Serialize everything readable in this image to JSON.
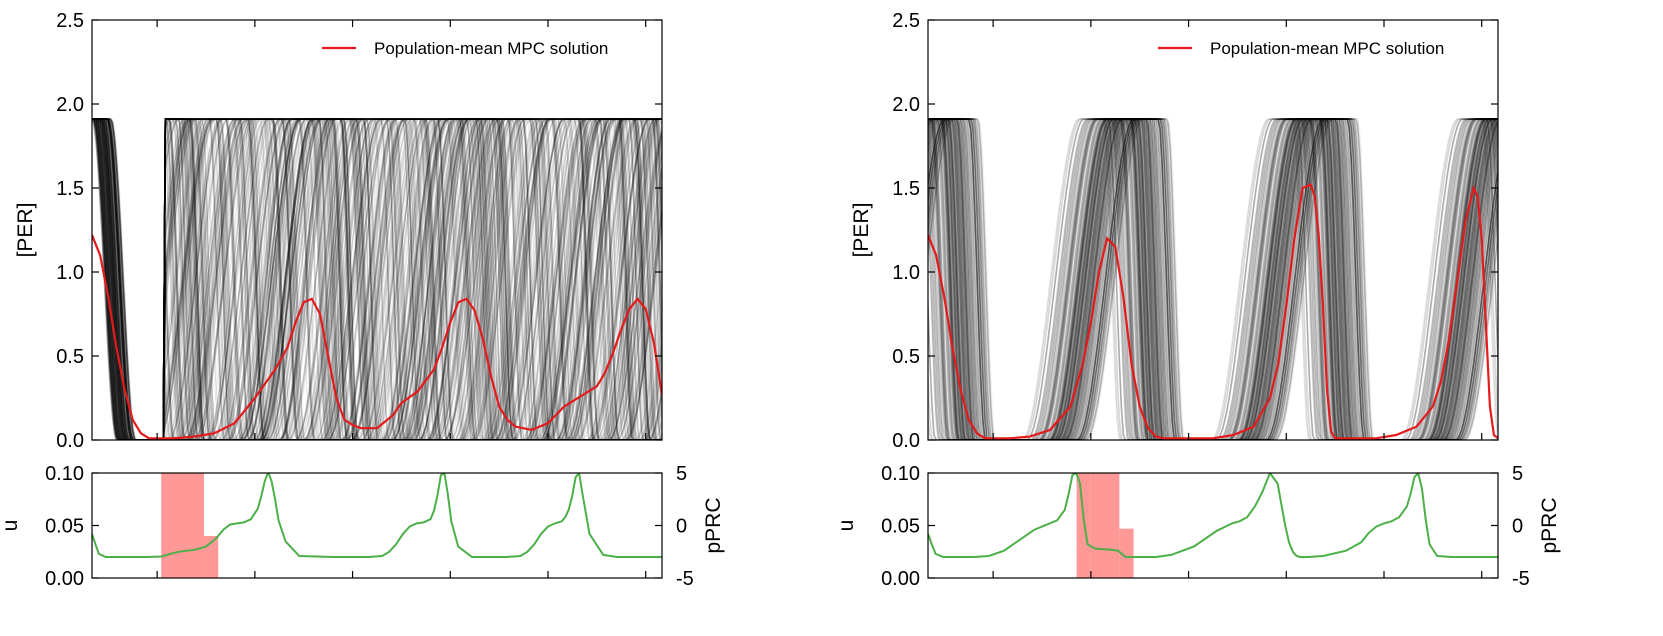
{
  "chart_data": [
    {
      "type": "line",
      "panel": "left",
      "ylabel": "[PER]",
      "ylim": [
        0,
        2.5
      ],
      "xlim": [
        0,
        140
      ],
      "yticks": [
        "0.0",
        "0.5",
        "1.0",
        "1.5",
        "2.0",
        "2.5"
      ],
      "legend": {
        "label": "Population-mean MPC solution",
        "color": "#e41a1c",
        "placement": "top-right"
      },
      "mean_series": {
        "name": "Population-mean MPC solution",
        "color": "#e41a1c",
        "x": [
          0,
          2,
          4,
          6,
          8,
          10,
          12,
          14,
          16,
          20,
          25,
          30,
          35,
          40,
          45,
          48,
          50,
          52,
          54,
          56,
          58,
          60,
          62,
          64,
          66,
          70,
          74,
          76,
          80,
          84,
          86,
          88,
          90,
          92,
          94,
          96,
          98,
          100,
          102,
          104,
          108,
          112,
          116,
          120,
          124,
          126,
          128,
          130,
          132,
          134,
          136,
          138,
          140
        ],
        "y": [
          1.22,
          1.1,
          0.85,
          0.55,
          0.3,
          0.12,
          0.04,
          0.01,
          0.01,
          0.01,
          0.02,
          0.04,
          0.1,
          0.25,
          0.42,
          0.55,
          0.7,
          0.82,
          0.84,
          0.75,
          0.5,
          0.25,
          0.12,
          0.09,
          0.07,
          0.07,
          0.15,
          0.22,
          0.29,
          0.42,
          0.55,
          0.7,
          0.82,
          0.84,
          0.77,
          0.6,
          0.38,
          0.2,
          0.12,
          0.08,
          0.06,
          0.1,
          0.2,
          0.26,
          0.32,
          0.4,
          0.52,
          0.66,
          0.78,
          0.84,
          0.78,
          0.58,
          0.27
        ]
      },
      "ensemble": {
        "color": "#000000",
        "plateau": 1.91,
        "count": 160
      },
      "control_panel": {
        "ylabel_left": "u",
        "ylabel_right": "pPRC",
        "ylim_left": [
          0,
          0.1
        ],
        "ylim_right": [
          -5,
          5
        ],
        "yticks_left": [
          "0.00",
          "0.05",
          "0.10"
        ],
        "yticks_right": [
          "-5",
          "0",
          "5"
        ],
        "control_bars": {
          "color": "#ff9896",
          "segments": [
            {
              "x0": 17,
              "x1": 27.5,
              "u": 0.1
            },
            {
              "x0": 27.5,
              "x1": 31,
              "u": 0.04
            }
          ]
        },
        "prc_series": {
          "color": "#4daf4a",
          "x": [
            0,
            1,
            2,
            4,
            8,
            12,
            16,
            20,
            25,
            30,
            33,
            36,
            38,
            40,
            42,
            44,
            46,
            48,
            49,
            50,
            51,
            52,
            53,
            54,
            56,
            60,
            70,
            80,
            84,
            86,
            88,
            90,
            92,
            94,
            96,
            98,
            99,
            100,
            101,
            102,
            103,
            104,
            106,
            110,
            120,
            124,
            126,
            128,
            130,
            132,
            134,
            136,
            137,
            138,
            139,
            140,
            141,
            142,
            144,
            148,
            152,
            156,
            160,
            165
          ],
          "y": [
            -0.8,
            -1.8,
            -2.7,
            -3.0,
            -3.0,
            -3.0,
            -3.0,
            -2.95,
            -2.5,
            -2.3,
            -2.0,
            -1.2,
            -0.4,
            0.1,
            0.2,
            0.3,
            0.6,
            1.6,
            2.8,
            4.2,
            5.1,
            4.2,
            2.5,
            0.5,
            -1.5,
            -2.9,
            -3.0,
            -3.0,
            -2.9,
            -2.5,
            -1.8,
            -0.8,
            -0.1,
            0.2,
            0.3,
            0.6,
            1.4,
            2.9,
            4.8,
            5.0,
            3.0,
            0.4,
            -2.0,
            -3.0,
            -3.0,
            -2.9,
            -2.5,
            -1.8,
            -0.8,
            -0.1,
            0.2,
            0.4,
            0.8,
            1.5,
            2.8,
            4.6,
            5.0,
            3.0,
            -0.8,
            -2.8,
            -3.0,
            -3.0,
            -3.0,
            -3.0
          ]
        }
      }
    },
    {
      "type": "line",
      "panel": "right",
      "ylabel": "[PER]",
      "ylim": [
        0,
        2.5
      ],
      "xlim": [
        0,
        140
      ],
      "yticks": [
        "0.0",
        "0.5",
        "1.0",
        "1.5",
        "2.0",
        "2.5"
      ],
      "legend": {
        "label": "Population-mean MPC solution",
        "color": "#e41a1c",
        "placement": "top-right"
      },
      "mean_series": {
        "name": "Population-mean MPC solution",
        "color": "#e41a1c",
        "x": [
          0,
          2,
          4,
          6,
          8,
          10,
          12,
          14,
          16,
          20,
          25,
          30,
          35,
          38,
          40,
          42,
          44,
          46,
          48,
          50,
          52,
          54,
          56,
          58,
          60,
          65,
          70,
          75,
          80,
          84,
          86,
          88,
          90,
          92,
          94,
          95,
          96,
          97,
          98,
          99,
          100,
          102,
          104,
          106,
          110,
          115,
          120,
          124,
          126,
          128,
          130,
          132,
          134,
          135,
          136,
          137,
          138,
          139,
          140
        ],
        "y": [
          1.22,
          1.1,
          0.85,
          0.55,
          0.3,
          0.12,
          0.04,
          0.01,
          0.01,
          0.01,
          0.02,
          0.06,
          0.2,
          0.45,
          0.7,
          1.0,
          1.2,
          1.15,
          0.85,
          0.45,
          0.2,
          0.07,
          0.02,
          0.01,
          0.01,
          0.01,
          0.01,
          0.03,
          0.08,
          0.25,
          0.45,
          0.8,
          1.2,
          1.5,
          1.52,
          1.45,
          1.2,
          0.8,
          0.3,
          0.05,
          0.01,
          0.01,
          0.01,
          0.01,
          0.01,
          0.03,
          0.08,
          0.2,
          0.35,
          0.6,
          0.95,
          1.3,
          1.5,
          1.45,
          1.2,
          0.7,
          0.2,
          0.03,
          0.01
        ]
      },
      "ensemble": {
        "color": "#000000",
        "plateau": 1.91,
        "count": 160
      },
      "control_panel": {
        "ylabel_left": "u",
        "ylabel_right": "pPRC",
        "ylim_left": [
          0,
          0.1
        ],
        "ylim_right": [
          -5,
          5
        ],
        "yticks_left": [
          "0.00",
          "0.05",
          "0.10"
        ],
        "yticks_right": [
          "-5",
          "0",
          "5"
        ],
        "control_bars": {
          "color": "#ff9896",
          "segments": [
            {
              "x0": 36.5,
              "x1": 40,
              "u": 0.1
            },
            {
              "x0": 40,
              "x1": 47,
              "u": 0.1
            },
            {
              "x0": 47,
              "x1": 50.5,
              "u": 0.047
            }
          ]
        },
        "prc_series": {
          "color": "#4daf4a",
          "x": [
            0,
            1,
            2,
            4,
            8,
            12,
            16,
            20,
            24,
            28,
            32,
            34,
            36,
            37,
            38,
            39,
            40,
            41,
            42,
            44,
            48,
            50,
            52,
            56,
            60,
            64,
            70,
            76,
            80,
            82,
            84,
            86,
            88,
            90,
            92,
            93,
            94,
            95,
            96,
            97,
            98,
            100,
            104,
            110,
            114,
            116,
            118,
            120,
            122,
            124,
            126,
            127,
            128,
            129,
            130,
            131,
            132,
            134,
            138,
            142,
            146,
            150
          ],
          "y": [
            -0.8,
            -1.8,
            -2.7,
            -3.0,
            -3.0,
            -3.0,
            -2.9,
            -2.4,
            -1.4,
            -0.4,
            0.2,
            0.5,
            1.5,
            3.0,
            4.8,
            5.0,
            4.0,
            0.5,
            -1.8,
            -2.2,
            -2.3,
            -2.4,
            -3.0,
            -3.0,
            -3.0,
            -2.8,
            -2.0,
            -0.5,
            0.2,
            0.4,
            0.8,
            1.8,
            3.2,
            5.0,
            4.0,
            2.0,
            0.0,
            -1.6,
            -2.5,
            -2.9,
            -3.0,
            -3.0,
            -2.9,
            -2.4,
            -1.6,
            -0.7,
            -0.1,
            0.2,
            0.4,
            0.8,
            1.8,
            3.0,
            4.6,
            5.0,
            3.5,
            0.5,
            -1.8,
            -2.9,
            -3.0,
            -3.0,
            -3.0,
            -3.0
          ]
        }
      }
    }
  ]
}
